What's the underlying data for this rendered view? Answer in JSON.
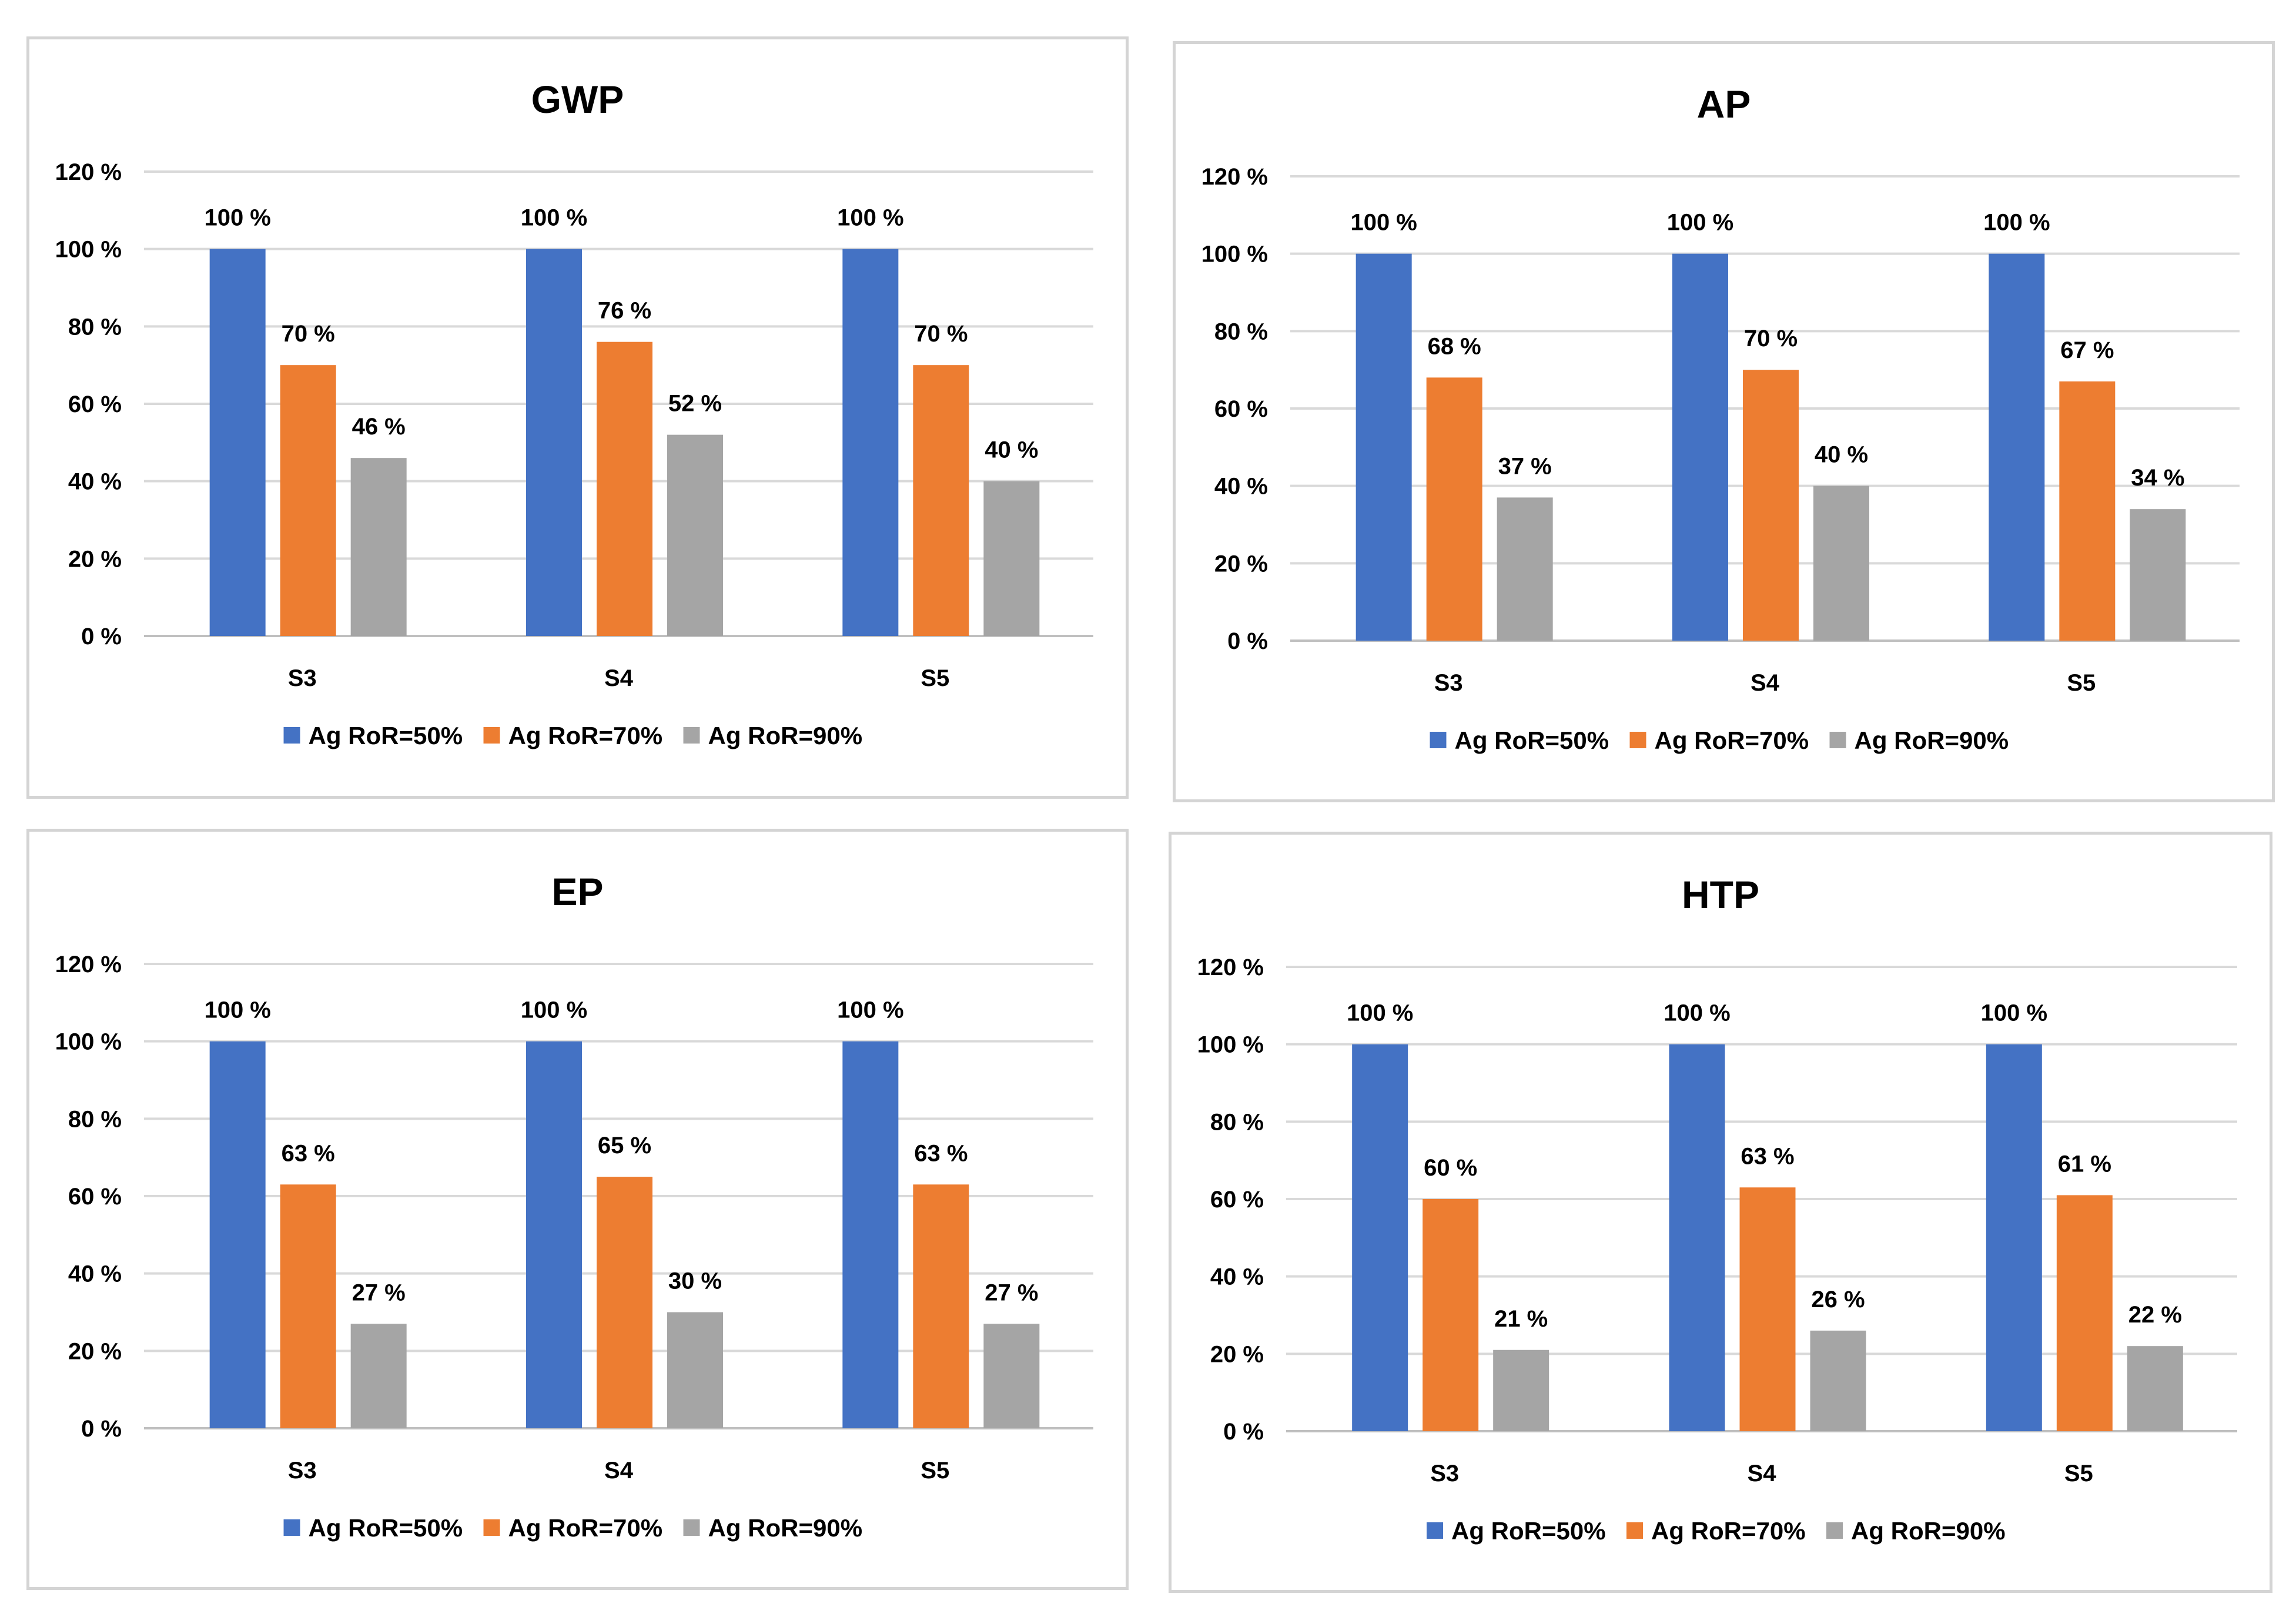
{
  "chart_data": [
    {
      "type": "bar",
      "title": "GWP",
      "categories": [
        "S3",
        "S4",
        "S5"
      ],
      "series": [
        {
          "name": "Ag RoR=50%",
          "values": [
            100,
            100,
            100
          ],
          "labels": [
            "100 %",
            "100 %",
            "100 %"
          ]
        },
        {
          "name": "Ag RoR=70%",
          "values": [
            70,
            76,
            70
          ],
          "labels": [
            "70 %",
            "76 %",
            "70 %"
          ]
        },
        {
          "name": "Ag RoR=90%",
          "values": [
            46,
            52,
            40
          ],
          "labels": [
            "46 %",
            "52 %",
            "40 %"
          ]
        }
      ],
      "yticks": [
        "0 %",
        "20 %",
        "40 %",
        "60 %",
        "80 %",
        "100 %",
        "120 %"
      ],
      "ylim": [
        0,
        120
      ],
      "grid": true,
      "legend": "bottom",
      "colors": [
        "#4472c4",
        "#ed7d31",
        "#a5a5a5"
      ]
    },
    {
      "type": "bar",
      "title": "AP",
      "categories": [
        "S3",
        "S4",
        "S5"
      ],
      "series": [
        {
          "name": "Ag RoR=50%",
          "values": [
            100,
            100,
            100
          ],
          "labels": [
            "100 %",
            "100 %",
            "100 %"
          ]
        },
        {
          "name": "Ag RoR=70%",
          "values": [
            68,
            70,
            67
          ],
          "labels": [
            "68 %",
            "70 %",
            "67 %"
          ]
        },
        {
          "name": "Ag RoR=90%",
          "values": [
            37,
            40,
            34
          ],
          "labels": [
            "37 %",
            "40 %",
            "34 %"
          ]
        }
      ],
      "yticks": [
        "0 %",
        "20 %",
        "40 %",
        "60 %",
        "80 %",
        "100 %",
        "120 %"
      ],
      "ylim": [
        0,
        120
      ],
      "grid": true,
      "legend": "bottom",
      "colors": [
        "#4472c4",
        "#ed7d31",
        "#a5a5a5"
      ]
    },
    {
      "type": "bar",
      "title": "EP",
      "categories": [
        "S3",
        "S4",
        "S5"
      ],
      "series": [
        {
          "name": "Ag RoR=50%",
          "values": [
            100,
            100,
            100
          ],
          "labels": [
            "100 %",
            "100 %",
            "100 %"
          ]
        },
        {
          "name": "Ag RoR=70%",
          "values": [
            63,
            65,
            63
          ],
          "labels": [
            "63 %",
            "65 %",
            "63 %"
          ]
        },
        {
          "name": "Ag RoR=90%",
          "values": [
            27,
            30,
            27
          ],
          "labels": [
            "27 %",
            "30 %",
            "27 %"
          ]
        }
      ],
      "yticks": [
        "0 %",
        "20 %",
        "40 %",
        "60 %",
        "80 %",
        "100 %",
        "120 %"
      ],
      "ylim": [
        0,
        120
      ],
      "grid": true,
      "legend": "bottom",
      "colors": [
        "#4472c4",
        "#ed7d31",
        "#a5a5a5"
      ]
    },
    {
      "type": "bar",
      "title": "HTP",
      "categories": [
        "S3",
        "S4",
        "S5"
      ],
      "series": [
        {
          "name": "Ag RoR=50%",
          "values": [
            100,
            100,
            100
          ],
          "labels": [
            "100 %",
            "100 %",
            "100 %"
          ]
        },
        {
          "name": "Ag RoR=70%",
          "values": [
            60,
            63,
            61
          ],
          "labels": [
            "60 %",
            "63 %",
            "61 %"
          ]
        },
        {
          "name": "Ag RoR=90%",
          "values": [
            21,
            26,
            22
          ],
          "labels": [
            "21 %",
            "26 %",
            "22 %"
          ]
        }
      ],
      "yticks": [
        "0 %",
        "20 %",
        "40 %",
        "60 %",
        "80 %",
        "100 %",
        "120 %"
      ],
      "ylim": [
        0,
        120
      ],
      "grid": true,
      "legend": "bottom",
      "colors": [
        "#4472c4",
        "#ed7d31",
        "#a5a5a5"
      ]
    }
  ]
}
